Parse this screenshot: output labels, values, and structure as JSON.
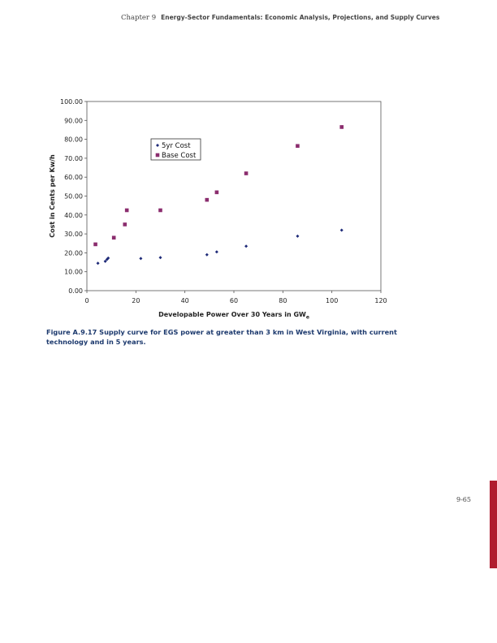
{
  "header": {
    "chapter": "Chapter 9",
    "title": "Energy-Sector Fundamentals: Economic Analysis, Projections, and Supply Curves"
  },
  "caption": "Figure A.9.17 Supply curve for EGS power at greater than 3 km in West Virginia, with current technology and in 5 years.",
  "page_number": "9-65",
  "colors": {
    "five_yr": "#1e2a78",
    "base": "#8b2d6e",
    "tab": "#b01c2e"
  },
  "chart_data": {
    "type": "scatter",
    "xlabel_main": "Developable Power Over 30 Years in GW",
    "xlabel_sub": "e",
    "ylabel": "Cost in Cents per Kw/h",
    "xlim": [
      0,
      120
    ],
    "ylim": [
      0,
      100
    ],
    "x_ticks": [
      "0",
      "20",
      "40",
      "60",
      "80",
      "100",
      "120"
    ],
    "y_ticks": [
      "0.00",
      "10.00",
      "20.00",
      "30.00",
      "40.00",
      "50.00",
      "60.00",
      "70.00",
      "80.00",
      "90.00",
      "100.00"
    ],
    "legend_position": "upper-left inside",
    "series": [
      {
        "name": "5yr Cost",
        "marker": "diamond",
        "x": [
          4.5,
          7.5,
          8.2,
          8.7,
          22,
          30,
          49,
          53,
          65,
          86,
          104
        ],
        "y": [
          14.5,
          15.5,
          16.5,
          17.2,
          17,
          17.5,
          19,
          20.5,
          23.5,
          28.8,
          32
        ]
      },
      {
        "name": "Base Cost",
        "marker": "square",
        "x": [
          3.5,
          11,
          15.5,
          16.3,
          30,
          49,
          53,
          65,
          86,
          104
        ],
        "y": [
          24.5,
          28,
          35,
          42.5,
          42.5,
          48,
          52,
          62,
          76.5,
          86.5
        ]
      }
    ]
  }
}
